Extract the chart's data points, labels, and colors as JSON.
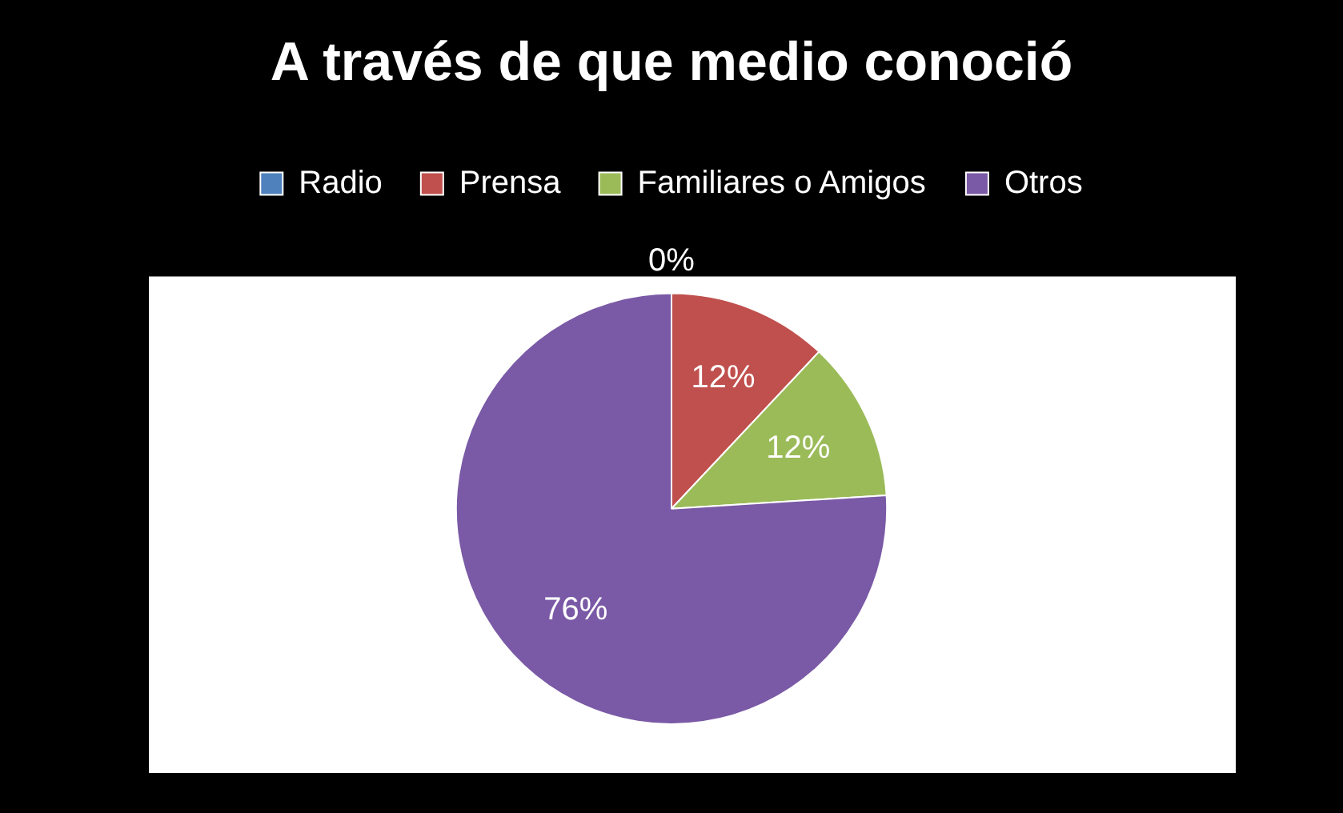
{
  "chart_data": {
    "type": "pie",
    "title": "A través de que medio conoció",
    "categories": [
      "Radio",
      "Prensa",
      "Familiares o Amigos",
      "Otros"
    ],
    "values": [
      0,
      12,
      12,
      76
    ],
    "colors": [
      "#4f81bd",
      "#c0504d",
      "#9bbb59",
      "#7a5aa6"
    ],
    "value_labels": [
      "0%",
      "12%",
      "12%",
      "76%"
    ],
    "legend": "top"
  }
}
